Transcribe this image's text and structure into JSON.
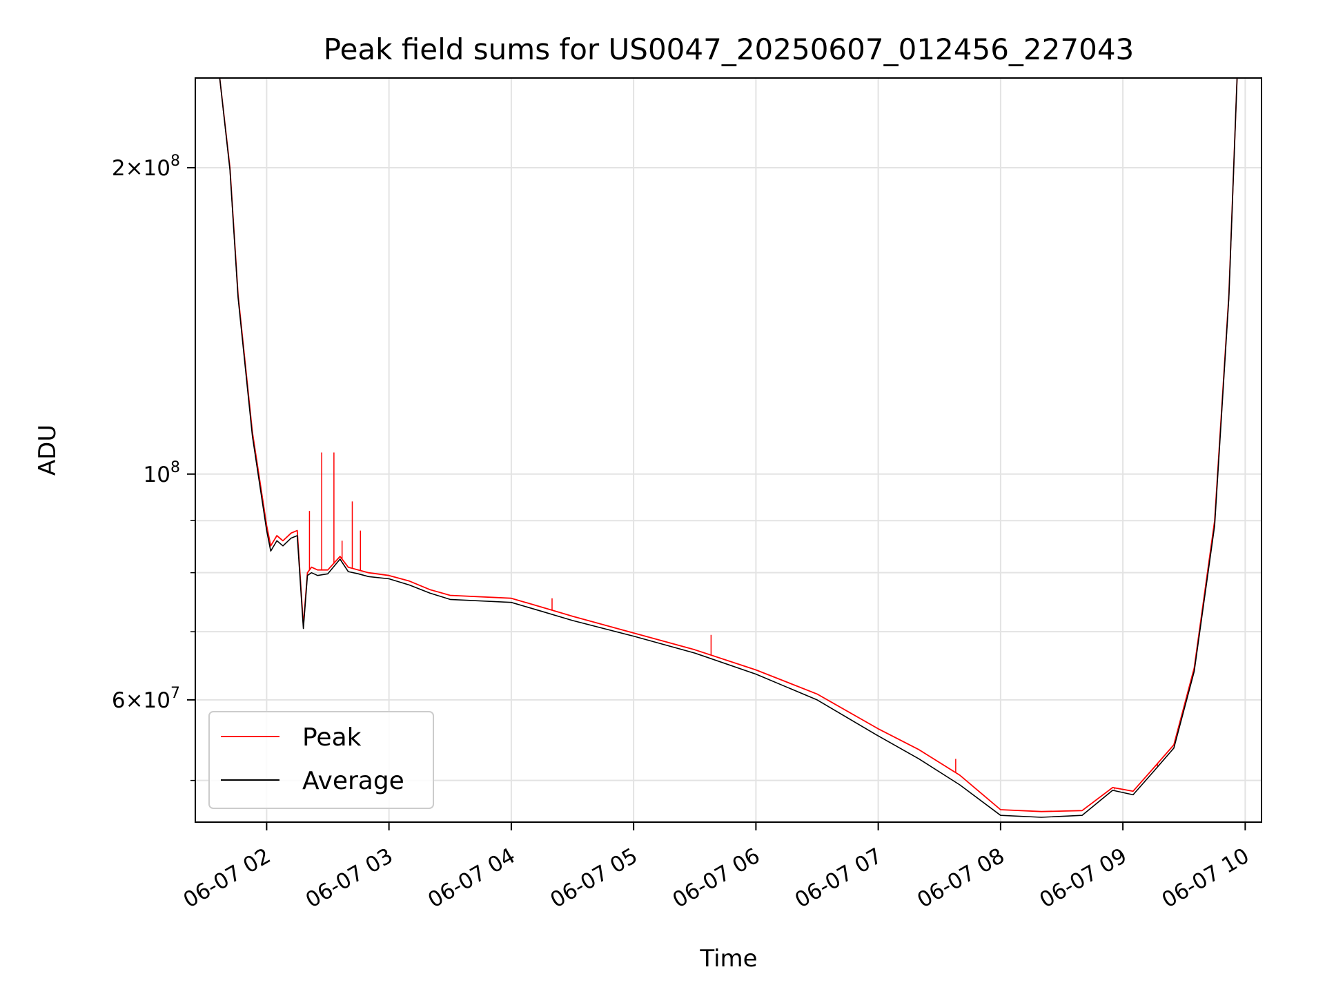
{
  "chart_data": {
    "type": "line",
    "title": "Peak field sums for US0047_20250607_012456_227043",
    "xlabel": "Time",
    "ylabel": "ADU",
    "y_scale": "log",
    "ylim": [
      45500000,
      245000000
    ],
    "xlim": [
      "2025-06-07 01:25",
      "2025-06-07 10:08"
    ],
    "grid": true,
    "legend_position": "lower-left",
    "x_tick_labels": [
      "06-07 02",
      "06-07 03",
      "06-07 04",
      "06-07 05",
      "06-07 06",
      "06-07 07",
      "06-07 08",
      "06-07 09",
      "06-07 10"
    ],
    "x_ticks": [
      "2025-06-07 02:00",
      "2025-06-07 03:00",
      "2025-06-07 04:00",
      "2025-06-07 05:00",
      "2025-06-07 06:00",
      "2025-06-07 07:00",
      "2025-06-07 08:00",
      "2025-06-07 09:00",
      "2025-06-07 10:00"
    ],
    "y_major_ticks": [
      {
        "value": 200000000,
        "mantissa": "2",
        "exponent": "8"
      },
      {
        "value": 100000000,
        "mantissa": "",
        "exponent": "8"
      },
      {
        "value": 60000000,
        "mantissa": "6",
        "exponent": "7"
      }
    ],
    "y_minor_ticks": [
      50000000,
      70000000,
      80000000,
      90000000
    ],
    "x": [
      "2025-06-07 01:25",
      "2025-06-07 01:37",
      "2025-06-07 01:42",
      "2025-06-07 01:46",
      "2025-06-07 01:53",
      "2025-06-07 02:00",
      "2025-06-07 02:02",
      "2025-06-07 02:05",
      "2025-06-07 02:08",
      "2025-06-07 02:12",
      "2025-06-07 02:15",
      "2025-06-07 02:18",
      "2025-06-07 02:20",
      "2025-06-07 02:22",
      "2025-06-07 02:25",
      "2025-06-07 02:30",
      "2025-06-07 02:36",
      "2025-06-07 02:40",
      "2025-06-07 02:45",
      "2025-06-07 02:50",
      "2025-06-07 03:00",
      "2025-06-07 03:10",
      "2025-06-07 03:20",
      "2025-06-07 03:30",
      "2025-06-07 04:00",
      "2025-06-07 04:15",
      "2025-06-07 04:30",
      "2025-06-07 05:00",
      "2025-06-07 05:30",
      "2025-06-07 06:00",
      "2025-06-07 06:30",
      "2025-06-07 07:00",
      "2025-06-07 07:20",
      "2025-06-07 07:40",
      "2025-06-07 08:00",
      "2025-06-07 08:20",
      "2025-06-07 08:40",
      "2025-06-07 08:55",
      "2025-06-07 09:05",
      "2025-06-07 09:15",
      "2025-06-07 09:25",
      "2025-06-07 09:35",
      "2025-06-07 09:45",
      "2025-06-07 09:52",
      "2025-06-07 09:56",
      "2025-06-07 10:08"
    ],
    "series": [
      {
        "name": "Peak",
        "color": "#ff0000",
        "values": [
          245000000,
          245000000,
          200000000,
          150000000,
          110000000,
          89000000,
          85000000,
          87000000,
          86000000,
          87500000,
          88000000,
          71000000,
          80000000,
          81000000,
          80500000,
          80500000,
          83000000,
          81000000,
          80500000,
          80000000,
          79500000,
          78500000,
          77000000,
          76000000,
          75500000,
          74000000,
          72500000,
          69800000,
          67200000,
          64200000,
          60800000,
          56200000,
          53600000,
          50600000,
          46800000,
          46600000,
          46700000,
          49200000,
          48800000,
          51400000,
          54200000,
          64500000,
          90000000,
          150000000,
          245000000,
          245000000
        ],
        "spikes": [
          {
            "x": "2025-06-07 02:21",
            "value": 92000000
          },
          {
            "x": "2025-06-07 02:27",
            "value": 105000000
          },
          {
            "x": "2025-06-07 02:33",
            "value": 105000000
          },
          {
            "x": "2025-06-07 02:37",
            "value": 86000000
          },
          {
            "x": "2025-06-07 02:42",
            "value": 94000000
          },
          {
            "x": "2025-06-07 02:46",
            "value": 88000000
          },
          {
            "x": "2025-06-07 04:20",
            "value": 75500000
          },
          {
            "x": "2025-06-07 05:38",
            "value": 69500000
          },
          {
            "x": "2025-06-07 07:38",
            "value": 52500000
          },
          {
            "x": "2025-06-07 08:56",
            "value": 49000000
          },
          {
            "x": "2025-06-07 09:17",
            "value": 51500000
          }
        ]
      },
      {
        "name": "Average",
        "color": "#000000",
        "values": [
          245000000,
          245000000,
          199000000,
          149000000,
          109000000,
          88000000,
          84000000,
          86000000,
          85000000,
          86500000,
          87000000,
          70500000,
          79500000,
          80000000,
          79500000,
          79800000,
          82500000,
          80200000,
          79800000,
          79300000,
          78900000,
          77800000,
          76400000,
          75300000,
          74800000,
          73300000,
          71800000,
          69300000,
          66700000,
          63600000,
          60000000,
          55300000,
          52500000,
          49500000,
          46200000,
          46000000,
          46200000,
          48900000,
          48400000,
          51000000,
          53800000,
          64000000,
          89000000,
          149000000,
          245000000,
          245000000
        ]
      }
    ]
  }
}
